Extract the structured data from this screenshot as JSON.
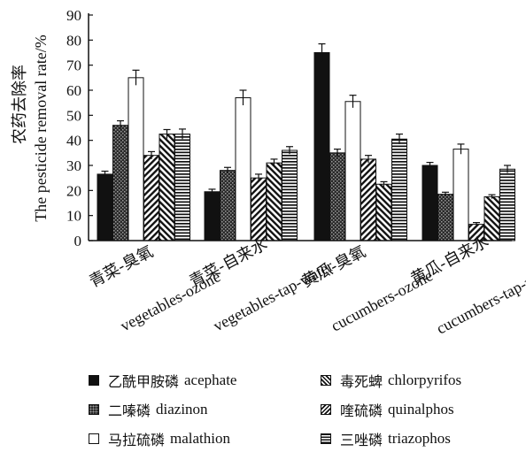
{
  "chart_data": {
    "type": "bar",
    "ylabel_zh": "农药去除率",
    "ylabel_en": "The pesticide removal rate/%",
    "ylim": [
      0,
      90
    ],
    "yticks": [
      0,
      10,
      20,
      30,
      40,
      50,
      60,
      70,
      80,
      90
    ],
    "categories": [
      {
        "zh": "青菜-臭氧",
        "en": "vegetables-ozone"
      },
      {
        "zh": "青菜-自来水",
        "en": "vegetables-tap-water"
      },
      {
        "zh": "黄瓜-臭氧",
        "en": "cucumbers-ozone"
      },
      {
        "zh": "黄瓜-自来水",
        "en": "cucumbers-tap-water"
      }
    ],
    "series": [
      {
        "name_zh": "乙酰甲胺磷",
        "name_en": "acephate",
        "pattern": "solid-black",
        "values": [
          26.5,
          19.5,
          75,
          30
        ],
        "errors": [
          1.2,
          1.0,
          3.5,
          1.2
        ]
      },
      {
        "name_zh": "二嗪磷",
        "name_en": "diazinon",
        "pattern": "dark-dots",
        "values": [
          46,
          28,
          35,
          18.5
        ],
        "errors": [
          1.8,
          1.2,
          1.5,
          0.8
        ]
      },
      {
        "name_zh": "马拉硫磷",
        "name_en": "malathion",
        "pattern": "white",
        "values": [
          65,
          57,
          55.5,
          36.5
        ],
        "errors": [
          3.0,
          3.0,
          2.5,
          2.0
        ]
      },
      {
        "name_zh": "毒死蜱",
        "name_en": "chlorpyrifos",
        "pattern": "diagonal-right",
        "values": [
          34,
          25,
          32.5,
          6.5
        ],
        "errors": [
          1.5,
          1.5,
          1.5,
          0.7
        ]
      },
      {
        "name_zh": "喹硫磷",
        "name_en": "quinalphos",
        "pattern": "diagonal-left",
        "values": [
          42.5,
          31,
          22.5,
          17.5
        ],
        "errors": [
          1.8,
          1.5,
          1.0,
          0.8
        ]
      },
      {
        "name_zh": "三唑磷",
        "name_en": "triazophos",
        "pattern": "horizontal",
        "values": [
          42.5,
          36,
          40.5,
          28.5
        ],
        "errors": [
          2.0,
          1.5,
          2.0,
          1.5
        ]
      }
    ],
    "legend_position": "bottom",
    "grid": false
  }
}
